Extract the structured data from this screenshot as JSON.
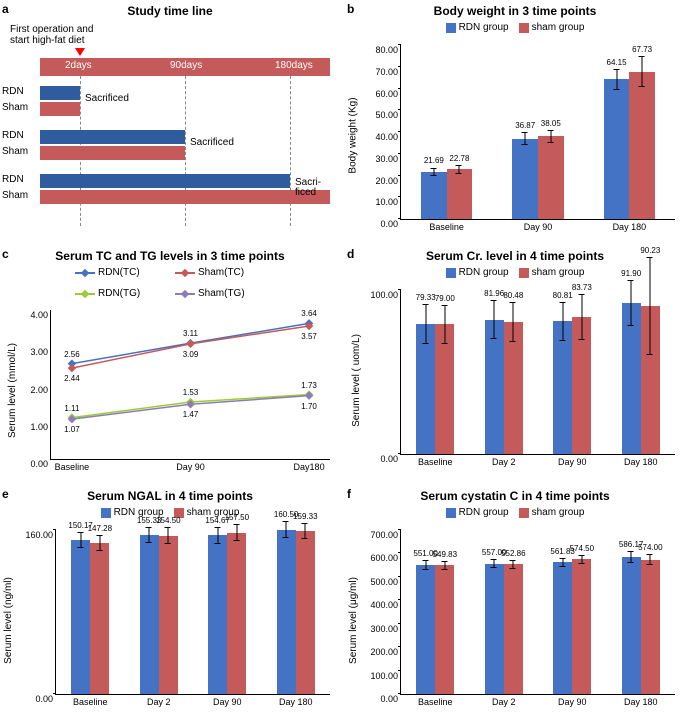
{
  "colors": {
    "rdn": "#4472C4",
    "sham": "#C55A5A",
    "tlred": "#C55A5A",
    "tlblue": "#2E5C9E"
  },
  "a": {
    "label": "a",
    "title": "Study time line",
    "sub": "First operation and\nstart high-fat diet",
    "times": [
      "2days",
      "90days",
      "180days"
    ],
    "rows": [
      "RDN",
      "Sham",
      "RDN",
      "Sham",
      "RDN",
      "Sham"
    ],
    "sac": "Sacrificed",
    "sac3": "Sacri-\nficed"
  },
  "b": {
    "label": "b",
    "title": "Body weight in 3 time points",
    "ylabel": "Body weight (Kg)",
    "ylim": [
      0,
      80
    ],
    "ystep": 10,
    "cats": [
      "Baseline",
      "Day 90",
      "Day 180"
    ],
    "rdn": [
      21.69,
      36.87,
      64.15
    ],
    "sham": [
      22.78,
      38.05,
      67.73
    ],
    "rdn_err": [
      2,
      3,
      5
    ],
    "sham_err": [
      2,
      3,
      7
    ],
    "leg": [
      "RDN group",
      "sham group"
    ]
  },
  "c": {
    "label": "c",
    "title": "Serum TC and TG levels in 3 time points",
    "ylabel": "Serum level (mmol/L)",
    "ylim": [
      0,
      4
    ],
    "ystep": 1,
    "cats": [
      "Baseline",
      "Day 90",
      "Day180"
    ],
    "series": [
      {
        "name": "RDN(TC)",
        "color": "#4472C4",
        "vals": [
          2.56,
          3.11,
          3.64
        ]
      },
      {
        "name": "Sham(TC)",
        "color": "#C55A5A",
        "vals": [
          2.44,
          3.09,
          3.57
        ]
      },
      {
        "name": "RDN(TG)",
        "color": "#9ACD32",
        "vals": [
          1.11,
          1.53,
          1.73
        ]
      },
      {
        "name": "Sham(TG)",
        "color": "#8B7DB5",
        "vals": [
          1.07,
          1.47,
          1.7
        ]
      }
    ]
  },
  "d": {
    "label": "d",
    "title": "Serum Cr. level in 4 time points",
    "ylabel": "Serum level ( uom/L)",
    "ylim": [
      0,
      100
    ],
    "ystep": 100,
    "yticks": [
      0,
      100
    ],
    "cats": [
      "Baseline",
      "Day 2",
      "Day 90",
      "Day 180"
    ],
    "rdn": [
      79.33,
      81.96,
      80.81,
      91.9
    ],
    "sham": [
      79.0,
      80.48,
      83.73,
      90.23
    ],
    "rdn_err": [
      12,
      12,
      12,
      14
    ],
    "sham_err": [
      12,
      12,
      14,
      30
    ],
    "leg": [
      "RDN group",
      "sham group"
    ]
  },
  "e": {
    "label": "e",
    "title": "Serum NGAL in 4 time points",
    "ylabel": "Serum level (ng/ml)",
    "ylim": [
      0,
      160
    ],
    "ystep": 160,
    "yticks": [
      0,
      160
    ],
    "cats": [
      "Baseline",
      "Day 2",
      "Day 90",
      "Day 180"
    ],
    "rdn": [
      150.17,
      155.33,
      154.67,
      160.5
    ],
    "sham": [
      147.28,
      154.5,
      157.5,
      159.33
    ],
    "rdn_err": [
      8,
      8,
      8,
      8
    ],
    "sham_err": [
      8,
      8,
      8,
      8
    ],
    "leg": [
      "RDN group",
      "sham group"
    ]
  },
  "f": {
    "label": "f",
    "title": "Serum cystatin C in 4 time points",
    "ylabel": "Serum level (μg/ml)",
    "ylim": [
      0,
      700
    ],
    "ystep": 100,
    "cats": [
      "Baseline",
      "Day 2",
      "Day 90",
      "Day 180"
    ],
    "rdn": [
      551.0,
      557.0,
      561.83,
      586.17
    ],
    "sham": [
      549.83,
      552.86,
      574.5,
      574.0
    ],
    "rdn_err": [
      20,
      20,
      20,
      25
    ],
    "sham_err": [
      20,
      20,
      20,
      25
    ],
    "leg": [
      "RDN group",
      "sham group"
    ]
  }
}
